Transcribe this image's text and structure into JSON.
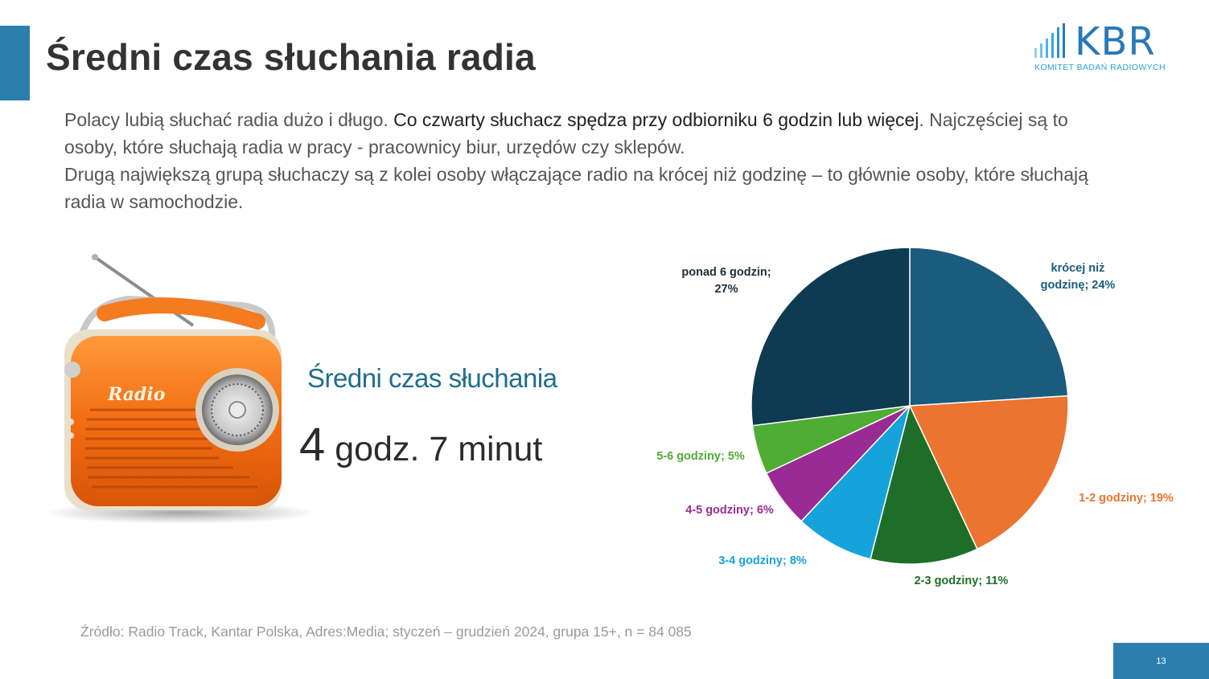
{
  "slide": {
    "title": "Średni czas słuchania radia",
    "logo": {
      "letters": "KBR",
      "tagline": "KOMITET BADAŃ RADIOWYCH"
    },
    "intro": {
      "p1_before": "Polacy lubią słuchać radia dużo i długo. ",
      "p1_bold": "Co czwarty słuchacz spędza przy odbiorniku 6 godzin lub więcej",
      "p1_after": ". Najczęściej są to osoby, które słuchają radia w pracy - pracownicy biur, urzędów czy sklepów.",
      "p2": "Drugą największą grupą słuchaczy są z kolei osoby włączające radio na krócej niż godzinę – to głównie osoby, które słuchają radia w samochodzie."
    },
    "radio_label": "Radio",
    "kpi": {
      "label": "Średni czas słuchania",
      "number": "4",
      "unit": " godz. 7 minut"
    },
    "source": "Źródło: Radio Track, Kantar Polska, Adres:Media; styczeń – grudzień 2024, grupa 15+, n = 84 085",
    "page_number": "13"
  },
  "chart_data": {
    "type": "pie",
    "title": "",
    "slices": [
      {
        "label": [
          "krócej niż",
          "godzinę; 24%"
        ],
        "value": 24,
        "color": "#1a5b7e",
        "label_color": "#1a5b7e"
      },
      {
        "label": [
          "1-2 godziny; 19%"
        ],
        "value": 19,
        "color": "#ea7430",
        "label_color": "#ea7430"
      },
      {
        "label": [
          "2-3 godziny; 11%"
        ],
        "value": 11,
        "color": "#1e6e2a",
        "label_color": "#1e6e2a"
      },
      {
        "label": [
          "3-4 godziny; 8%"
        ],
        "value": 8,
        "color": "#16a3dc",
        "label_color": "#16a3dc"
      },
      {
        "label": [
          "4-5 godziny; 6%"
        ],
        "value": 6,
        "color": "#9b2b94",
        "label_color": "#9b2b94"
      },
      {
        "label": [
          "5-6 godziny; 5%"
        ],
        "value": 5,
        "color": "#4fac35",
        "label_color": "#4fac35"
      },
      {
        "label": [
          "ponad 6 godzin;",
          "27%"
        ],
        "value": 27,
        "color": "#0e3a52",
        "label_color": "#1f2d3a"
      }
    ]
  }
}
